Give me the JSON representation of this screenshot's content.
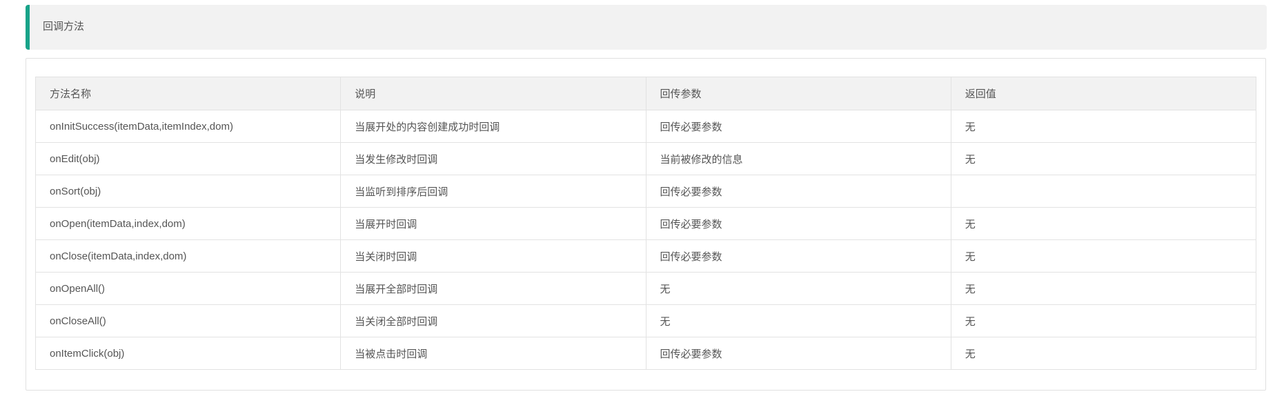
{
  "theme": {
    "accent_teal": "#18a389",
    "panel_background": "#f2f2f2",
    "grid_border": "#e2e2e2",
    "text_color": "#555555"
  },
  "section": {
    "title": "回调方法"
  },
  "table": {
    "headers": [
      "方法名称",
      "说明",
      "回传参数",
      "返回值"
    ],
    "rows": [
      [
        "onInitSuccess(itemData,itemIndex,dom)",
        "当展开处的内容创建成功时回调",
        "回传必要参数",
        "无"
      ],
      [
        "onEdit(obj)",
        "当发生修改时回调",
        "当前被修改的信息",
        "无"
      ],
      [
        "onSort(obj)",
        "当监听到排序后回调",
        "回传必要参数",
        ""
      ],
      [
        "onOpen(itemData,index,dom)",
        "当展开时回调",
        "回传必要参数",
        "无"
      ],
      [
        "onClose(itemData,index,dom)",
        "当关闭时回调",
        "回传必要参数",
        "无"
      ],
      [
        "onOpenAll()",
        "当展开全部时回调",
        "无",
        "无"
      ],
      [
        "onCloseAll()",
        "当关闭全部时回调",
        "无",
        "无"
      ],
      [
        "onItemClick(obj)",
        "当被点击时回调",
        "回传必要参数",
        "无"
      ]
    ]
  }
}
